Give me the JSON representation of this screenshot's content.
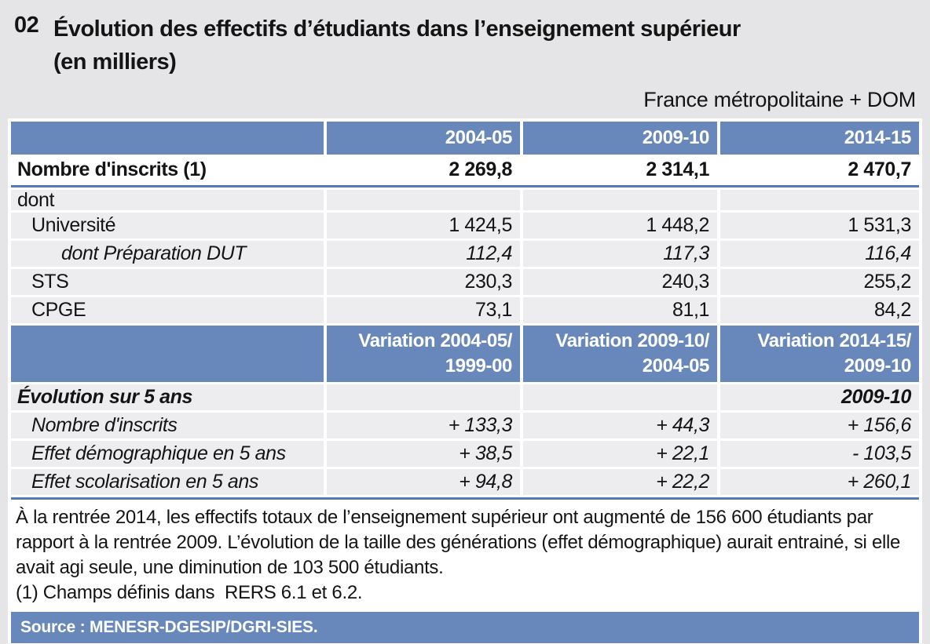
{
  "page": {
    "number": "02",
    "title": "Évolution des effectifs d’étudiants dans l’enseignement supérieur",
    "subtitle": "(en milliers)",
    "scope_note": "France métropolitaine + DOM"
  },
  "table": {
    "period_header": {
      "corner": "",
      "cols": [
        "2004-05",
        "2009-10",
        "2014-15"
      ]
    },
    "rows_top": [
      {
        "label": "Nombre d'inscrits (1)",
        "values": [
          "2 269,8",
          "2 314,1",
          "2 470,7"
        ]
      },
      {
        "label": "dont",
        "values": [
          "",
          "",
          ""
        ]
      },
      {
        "label": "Université",
        "values": [
          "1 424,5",
          "1 448,2",
          "1 531,3"
        ]
      },
      {
        "label": "dont Préparation DUT",
        "values": [
          "112,4",
          "117,3",
          "116,4"
        ]
      },
      {
        "label": "STS",
        "values": [
          "230,3",
          "240,3",
          "255,2"
        ]
      },
      {
        "label": "CPGE",
        "values": [
          "73,1",
          "81,1",
          "84,2"
        ]
      }
    ],
    "variation_header": {
      "corner": "",
      "cols": [
        "Variation 2004-05/\n1999-00",
        "Variation 2009-10/\n2004-05",
        "Variation 2014-15/\n2009-10"
      ]
    },
    "rows_bottom": [
      {
        "label": "Évolution sur 5 ans",
        "values": [
          "",
          "",
          "2009-10"
        ]
      },
      {
        "label": "Nombre d'inscrits",
        "values": [
          "+ 133,3",
          "+ 44,3",
          "+ 156,6"
        ]
      },
      {
        "label": "Effet démographique en 5 ans",
        "values": [
          "+ 38,5",
          "+ 22,1",
          "- 103,5"
        ]
      },
      {
        "label": "Effet scolarisation en 5 ans",
        "values": [
          "+ 94,8",
          "+ 22,2",
          "+ 260,1"
        ]
      }
    ]
  },
  "notes": {
    "paragraph": "À la rentrée 2014, les effectifs totaux de l’enseignement supérieur ont augmenté de 156 600 étudiants par rapport à la rentrée 2009. L’évolution de la taille des générations (effet démographique) aurait entrainé, si elle avait agi seule, une diminution de 103 500 étudiants.",
    "footnote": "(1) Champs définis dans  RERS 6.1 et 6.2."
  },
  "source": {
    "label": "Source : MENESR-DGESIP/DGRI-SIES."
  },
  "colors": {
    "accent_blue": "#6888bb",
    "rule_blue": "#5479b2",
    "row_gray": "#ededef",
    "page_gray": "#e5e5e7"
  }
}
